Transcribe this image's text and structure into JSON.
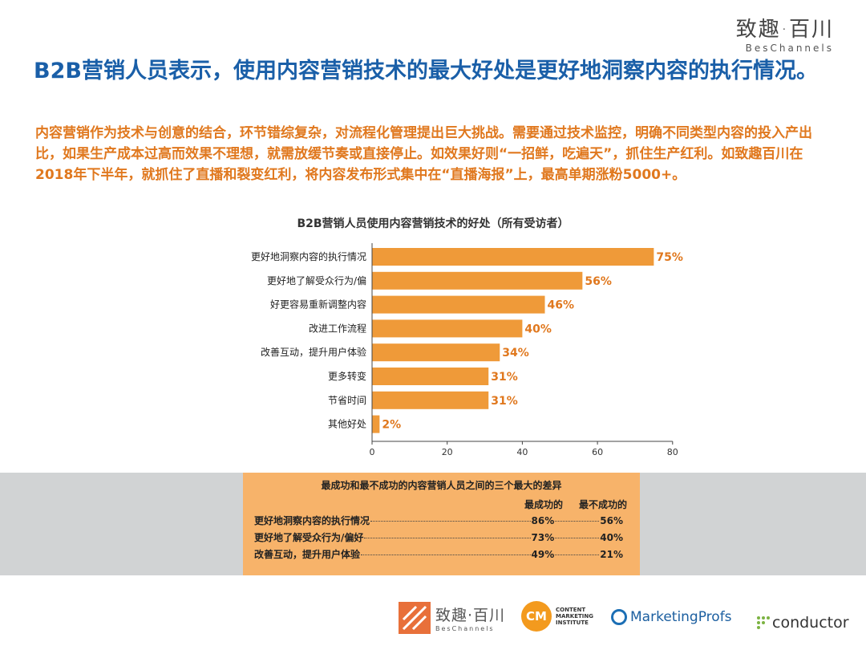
{
  "brand": {
    "cn": "致趣·百川",
    "en": "BesChannels"
  },
  "headline": "B2B营销人员表示，使用内容营销技术的最大好处是更好地洞察内容的执行情况。",
  "intro": "内容营销作为技术与创意的结合，环节错综复杂，对流程化管理提出巨大挑战。需要通过技术监控，明确不同类型内容的投入产出比，如果生产成本过高而效果不理想，就需放缓节奏或直接停止。如效果好则“一招鲜，吃遍天”，抓住生产红利。如致趣百川在2018年下半年，就抓住了直播和裂变红利，将内容发布形式集中在“直播海报”上，最高单期涨粉5000+。",
  "chart_data": {
    "type": "bar",
    "orientation": "horizontal",
    "title": "B2B营销人员使用内容营销技术的好处（所有受访者）",
    "categories": [
      "更好地洞察内容的执行情况",
      "更好地了解受众行为/偏",
      "好更容易重新调整内容",
      "改进工作流程",
      "改善互动，提升用户体验",
      "更多转变",
      "节省时间",
      "其他好处"
    ],
    "values": [
      75,
      56,
      46,
      40,
      34,
      31,
      31,
      2
    ],
    "value_labels": [
      "75%",
      "56%",
      "46%",
      "40%",
      "34%",
      "31%",
      "31%",
      "2%"
    ],
    "xticks": [
      "0",
      "20",
      "40",
      "60",
      "80"
    ],
    "xlim": [
      0,
      80
    ],
    "bar_color": "#ef9a39",
    "label_color": "#e0781e"
  },
  "diff_table": {
    "title": "最成功和最不成功的内容营销人员之间的三个最大的差异",
    "col1": "最成功的",
    "col2": "最不成功的",
    "rows": [
      {
        "label": "更好地洞察内容的执行情况",
        "v1": "86%",
        "v2": "56%"
      },
      {
        "label": "更好地了解受众行为/偏好",
        "v1": "73%",
        "v2": "40%"
      },
      {
        "label": "改善互动，提升用户体验",
        "v1": "49%",
        "v2": "21%"
      }
    ]
  },
  "logos": {
    "bes_cn": "致趣·百川",
    "bes_en": "BesChannels",
    "cmi_mark": "CM",
    "cmi_lines": [
      "CONTENT",
      "MARKETING",
      "INSTITUTE"
    ],
    "mp": "MarketingProfs",
    "conductor": "conductor"
  }
}
